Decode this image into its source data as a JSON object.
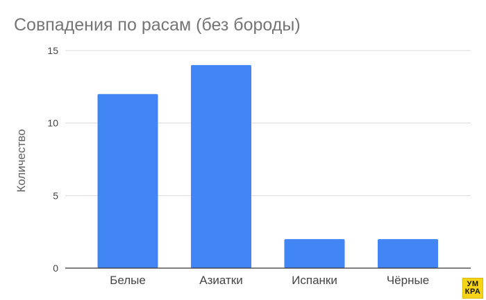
{
  "chart_data": {
    "type": "bar",
    "title": "Совпадения по расам (без бороды)",
    "xlabel": "",
    "ylabel": "Количество",
    "categories": [
      "Белые",
      "Азиатки",
      "Испанки",
      "Чёрные"
    ],
    "values": [
      12,
      14,
      2,
      2
    ],
    "ylim": [
      0,
      15
    ],
    "yticks": [
      0,
      5,
      10,
      15
    ],
    "grid": true,
    "legend": "none",
    "bar_color": "#4285f4"
  },
  "logo": {
    "line1": "УМ",
    "line2": "КРА"
  }
}
